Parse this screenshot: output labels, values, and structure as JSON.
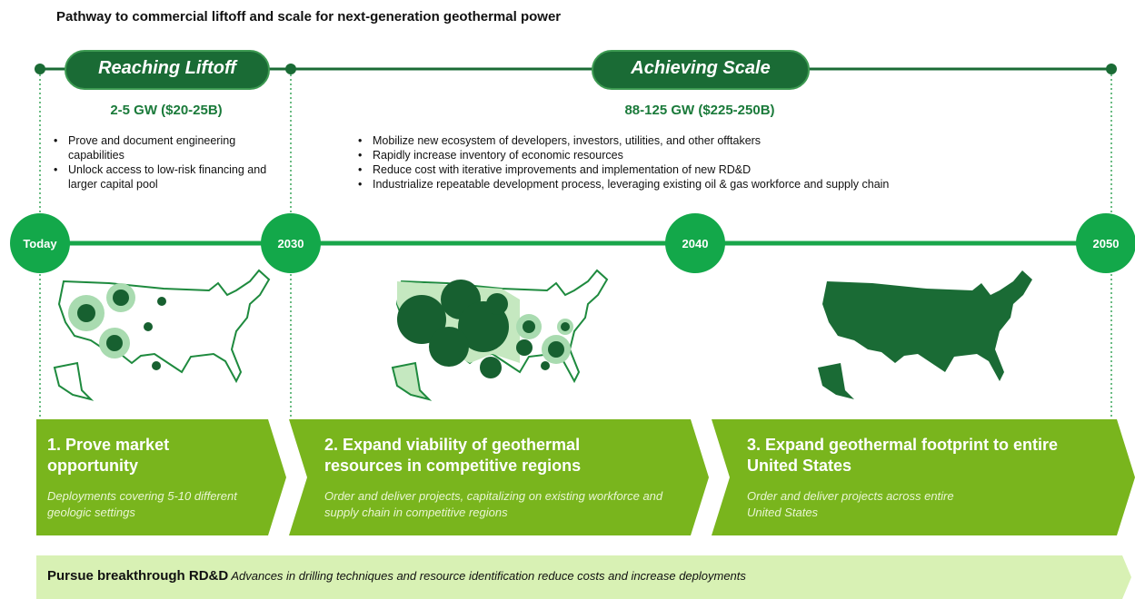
{
  "title": "Pathway to commercial liftoff and scale for next-generation geothermal power",
  "phases": [
    {
      "label": "Reaching Liftoff",
      "capacity": "2-5 GW ($20-25B)",
      "bullets": [
        "Prove and document engineering capabilities",
        "Unlock access to low-risk financing and larger capital pool"
      ]
    },
    {
      "label": "Achieving Scale",
      "capacity": "88-125 GW ($225-250B)",
      "bullets": [
        "Mobilize new ecosystem of developers, investors, utilities, and other offtakers",
        "Rapidly increase inventory of economic resources",
        "Reduce cost with iterative improvements and implementation of new RD&D",
        "Industrialize repeatable development process, leveraging existing oil & gas workforce and supply chain"
      ]
    }
  ],
  "milestones": [
    "Today",
    "2030",
    "2040",
    "2050"
  ],
  "stages": [
    {
      "title": "1. Prove market opportunity",
      "description": "Deployments covering 5-10 different geologic settings"
    },
    {
      "title": "2. Expand viability of geothermal resources in competitive regions",
      "description": "Order and deliver projects, capitalizing on existing workforce and supply chain in competitive regions"
    },
    {
      "title": "3. Expand geothermal footprint to entire United States",
      "description": "Order and deliver projects across entire United States"
    }
  ],
  "rdd": {
    "title": "Pursue breakthrough RD&D",
    "description": "Advances in drilling techniques and resource identification reduce costs and increase deployments"
  }
}
